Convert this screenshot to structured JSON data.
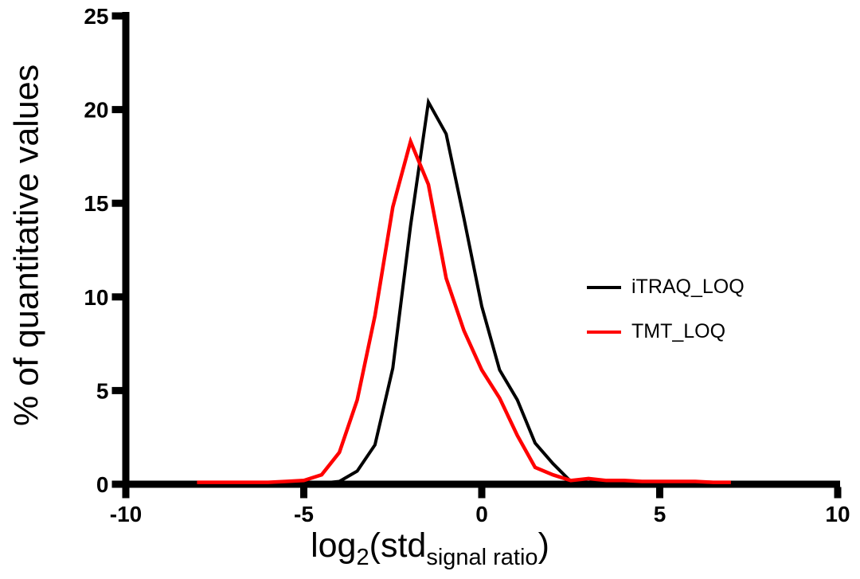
{
  "figure": {
    "background": "#ffffff",
    "accent_black": "#000000",
    "accent_red": "#ff0000"
  },
  "chart_data": {
    "type": "line",
    "title": "",
    "ylabel": "% of quantitative values",
    "xlabel_parts": [
      {
        "text": "log",
        "sub": false
      },
      {
        "text": "2",
        "sub": true
      },
      {
        "text": "(std",
        "sub": false
      },
      {
        "text": "signal ratio",
        "sub": true
      },
      {
        "text": ")",
        "sub": false
      }
    ],
    "xlim": [
      -10,
      10
    ],
    "ylim": [
      0,
      25
    ],
    "grid": false,
    "legend_position": "right-middle",
    "x_ticks": [
      {
        "v": -10,
        "label": "-10"
      },
      {
        "v": -5,
        "label": "-5"
      },
      {
        "v": 0,
        "label": "0"
      },
      {
        "v": 5,
        "label": "5"
      },
      {
        "v": 10,
        "label": "10"
      }
    ],
    "y_ticks": [
      {
        "v": 0,
        "label": "0"
      },
      {
        "v": 5,
        "label": "5"
      },
      {
        "v": 10,
        "label": "10"
      },
      {
        "v": 15,
        "label": "15"
      },
      {
        "v": 20,
        "label": "20"
      },
      {
        "v": 25,
        "label": "25"
      }
    ],
    "series": [
      {
        "name": "iTRAQ_LOQ",
        "color": "#000000",
        "stroke_width": 4,
        "x": [
          -4.5,
          -4,
          -3.5,
          -3,
          -2.5,
          -2,
          -1.5,
          -1,
          -0.5,
          0,
          0.5,
          1,
          1.5,
          2,
          2.5,
          3,
          3.5,
          4
        ],
        "values": [
          0.05,
          0.15,
          0.7,
          2.1,
          6.2,
          13.8,
          20.4,
          18.7,
          14.2,
          9.5,
          6.1,
          4.5,
          2.2,
          1.1,
          0.15,
          0.3,
          0.1,
          0.05
        ]
      },
      {
        "name": "TMT_LOQ",
        "color": "#ff0000",
        "stroke_width": 4.5,
        "x": [
          -8,
          -7.5,
          -7,
          -6.5,
          -6,
          -5.5,
          -5,
          -4.5,
          -4,
          -3.5,
          -3,
          -2.5,
          -2,
          -1.5,
          -1,
          -0.5,
          0,
          0.5,
          1,
          1.5,
          2,
          2.5,
          3,
          3.5,
          4,
          4.5,
          5,
          5.5,
          6,
          6.5,
          7
        ],
        "values": [
          0.1,
          0.1,
          0.1,
          0.1,
          0.1,
          0.15,
          0.2,
          0.5,
          1.7,
          4.5,
          9.0,
          14.8,
          18.3,
          16.0,
          11.0,
          8.2,
          6.1,
          4.6,
          2.6,
          0.9,
          0.5,
          0.2,
          0.3,
          0.2,
          0.2,
          0.15,
          0.15,
          0.15,
          0.15,
          0.1,
          0.1
        ]
      }
    ]
  }
}
